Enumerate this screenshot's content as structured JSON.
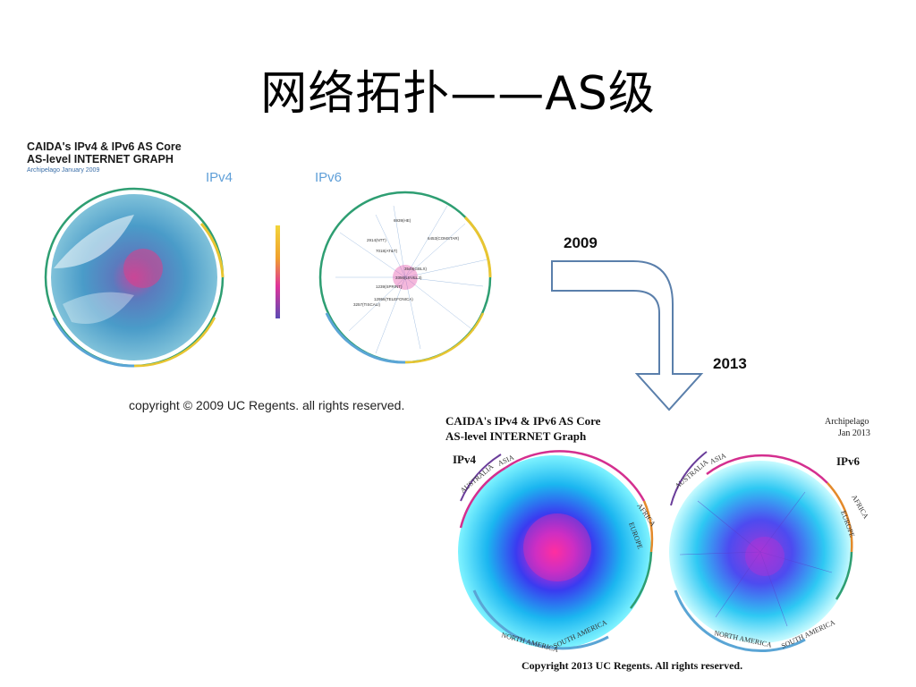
{
  "slide": {
    "title": "网络拓扑——AS级",
    "year_2009": "2009",
    "year_2013": "2013"
  },
  "figure_2009": {
    "heading_line1": "CAIDA's IPv4 & IPv6 AS Core",
    "heading_line2": "AS-level INTERNET GRAPH",
    "subheading": "Archipelago January 2009",
    "label_ipv4": "IPv4",
    "label_ipv6": "IPv6",
    "copyright": "copyright © 2009 UC Regents. all rights reserved.",
    "ipv6_node_labels": [
      "6939(HE)",
      "2914(NTT)",
      "6453(COMSTAR)",
      "7018(AT&T)",
      "3549(GBLX)",
      "3356(LEVEL3)",
      "1239(SPRINT)",
      "12956(TELEFONICA)",
      "3257(TISCALI)"
    ]
  },
  "figure_2013": {
    "heading_line1": "CAIDA's IPv4 & IPv6 AS Core",
    "heading_line2": "AS-level INTERNET Graph",
    "archipelago_line1": "Archipelago",
    "archipelago_line2": "Jan 2013",
    "label_ipv4": "IPv4",
    "label_ipv6": "IPv6",
    "region_labels": [
      "AUSTRALIA",
      "ASIA",
      "AFRICA",
      "EUROPE",
      "NORTH AMERICA",
      "SOUTH AMERICA"
    ],
    "copyright": "Copyright  2013 UC Regents. All rights reserved."
  },
  "colors": {
    "arrow_stroke": "#5a7fab",
    "ring_green": "#2e9e72",
    "ring_blue": "#5aa5d5",
    "ring_yellow": "#e8c531",
    "ring_magenta": "#d42f8f",
    "ring_purple": "#6a3d9a",
    "ring_orange": "#e38a2b",
    "ipv4_label": "#5f9fd8",
    "core_pink": "#e0349a"
  }
}
